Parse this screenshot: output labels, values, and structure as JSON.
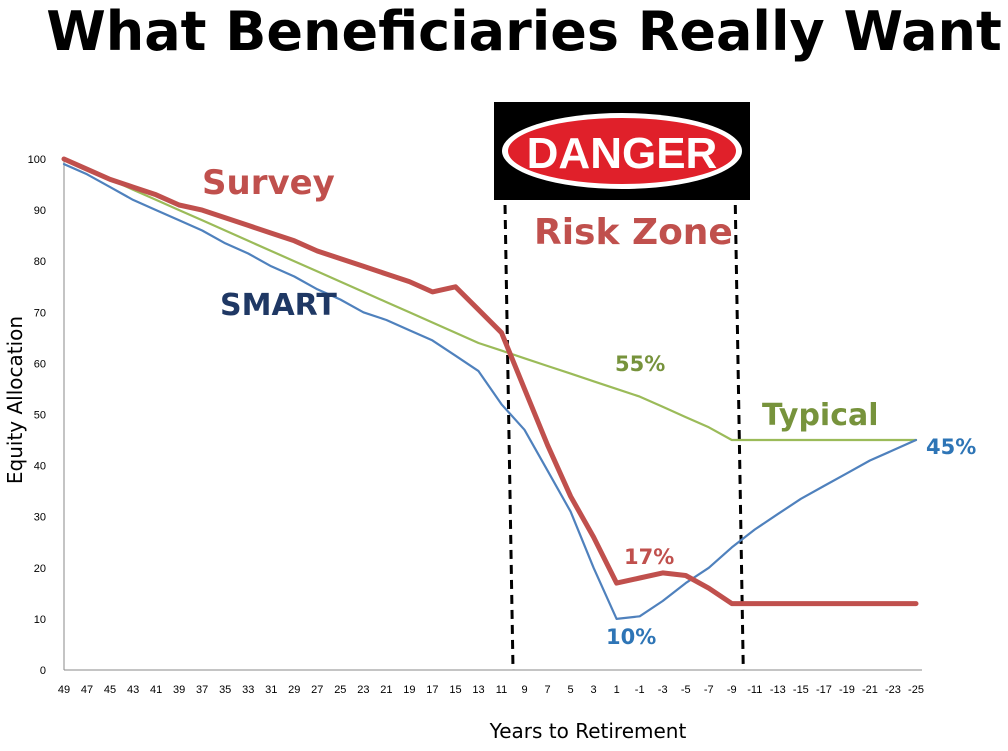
{
  "title": "What Beneficiaries Really Want",
  "chart_data": {
    "type": "line",
    "xlabel": "Years to Retirement",
    "ylabel": "Equity Allocation",
    "ylim": [
      0,
      100
    ],
    "yticks": [
      0,
      10,
      20,
      30,
      40,
      50,
      60,
      70,
      80,
      90,
      100
    ],
    "x": [
      49,
      47,
      45,
      43,
      41,
      39,
      37,
      35,
      33,
      31,
      29,
      27,
      25,
      23,
      21,
      19,
      17,
      15,
      13,
      11,
      9,
      7,
      5,
      3,
      1,
      -1,
      -3,
      -5,
      -7,
      -9,
      -11,
      -13,
      -15,
      -17,
      -19,
      -21,
      -23,
      -25
    ],
    "series": [
      {
        "name": "Survey",
        "color": "#c0504d",
        "values": [
          100,
          98,
          96,
          94.5,
          93,
          91,
          90,
          88.5,
          87,
          85.5,
          84,
          82,
          80.5,
          79,
          77.5,
          76,
          74,
          75,
          70.5,
          66,
          55,
          44,
          34,
          26,
          17,
          18,
          19,
          18.5,
          16,
          13,
          13,
          13,
          13,
          13,
          13,
          13,
          13,
          13
        ]
      },
      {
        "name": "SMART",
        "color": "#4f81bd",
        "values": [
          99,
          97,
          94.5,
          92,
          90,
          88,
          86,
          83.5,
          81.5,
          79,
          77,
          74.5,
          72.5,
          70,
          68.5,
          66.5,
          64.5,
          61.5,
          58.5,
          52,
          47,
          39,
          31,
          20,
          10,
          10.5,
          13.5,
          17,
          20,
          24,
          27.5,
          30.5,
          33.5,
          36,
          38.5,
          41,
          43,
          45
        ]
      },
      {
        "name": "Typical",
        "color": "#9bbb59",
        "values": [
          100,
          98,
          96,
          94,
          92,
          90,
          88,
          86,
          84,
          82,
          80,
          78,
          76,
          74,
          72,
          70,
          68,
          66,
          64,
          62.5,
          61,
          59.5,
          58,
          56.5,
          55,
          53.5,
          51.5,
          49.5,
          47.5,
          45,
          45,
          45,
          45,
          45,
          45,
          45,
          45,
          45
        ]
      }
    ],
    "annotations": [
      {
        "text": "Survey",
        "color": "#c0504d"
      },
      {
        "text": "SMART",
        "color": "#1f3864"
      },
      {
        "text": "Typical",
        "color": "#77933c"
      },
      {
        "text": "55%",
        "color": "#77933c"
      },
      {
        "text": "45%",
        "color": "#2e75b6"
      },
      {
        "text": "17%",
        "color": "#c0504d"
      },
      {
        "text": "10%",
        "color": "#2e75b6"
      },
      {
        "text": "Risk Zone",
        "color": "#c0504d"
      }
    ],
    "danger_sign": "DANGER",
    "risk_zone_x": [
      10,
      -10
    ]
  }
}
